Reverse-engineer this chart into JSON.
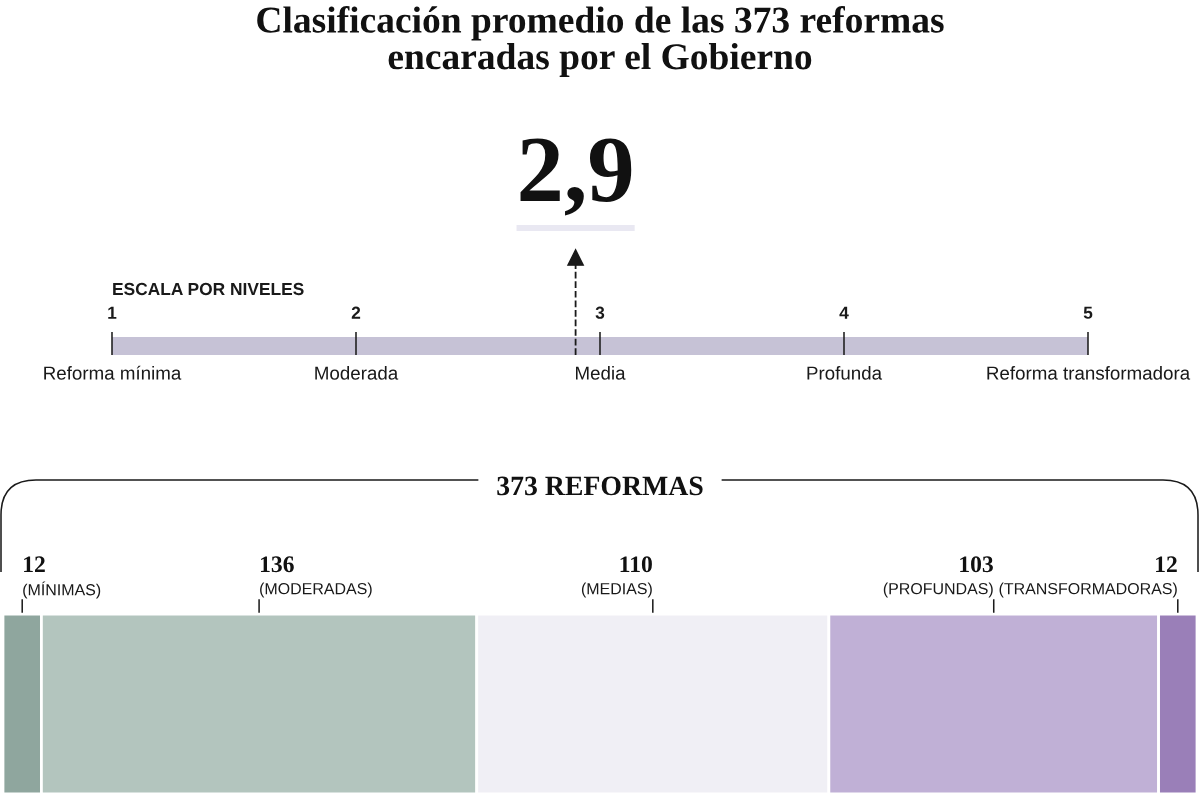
{
  "chart_data": [
    {
      "type": "bar",
      "orientation": "horizontal",
      "title": "Clasificación promedio de las 373 reformas\nencaradas por el Gobierno",
      "xlabel": "ESCALA POR NIVELES",
      "categories": [
        null
      ],
      "base": [
        1
      ],
      "values": [
        4
      ],
      "color": "#c6c2d6",
      "xlim": [
        1,
        5
      ],
      "xticks": [
        1,
        2,
        3,
        4,
        5
      ],
      "ref_lines": [
        {
          "axis": "x",
          "value": 2.9,
          "label": "2,9",
          "line_style": "dashed",
          "color": "#1a1a1a"
        }
      ],
      "annotations": [
        "Reforma mínima",
        "Moderada",
        "Media",
        "Profunda",
        "Reforma transformadora"
      ]
    },
    {
      "type": "bar",
      "orientation": "horizontal",
      "stacked": true,
      "categories": [
        null
      ],
      "data_labels": true,
      "annotations": [
        "373 REFORMAS"
      ],
      "series": [
        {
          "name": "(MÍNIMAS)",
          "color": "#8fa69e",
          "values": [
            12
          ]
        },
        {
          "name": "(MODERADAS)",
          "color": "#b3c5be",
          "values": [
            136
          ]
        },
        {
          "name": "(MEDIAS)",
          "color": "#f0eff5",
          "values": [
            110
          ]
        },
        {
          "name": "(PROFUNDAS)",
          "color": "#c0b0d6",
          "values": [
            103
          ]
        },
        {
          "name": "(TRANSFORMADORAS)",
          "color": "#9a7fb8",
          "values": [
            12
          ]
        }
      ]
    }
  ]
}
